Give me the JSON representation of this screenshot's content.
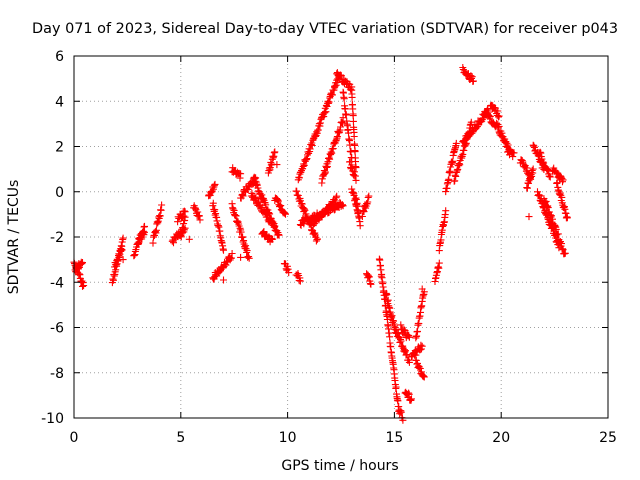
{
  "chart_data": {
    "type": "scatter",
    "title": "Day 071 of 2023, Sidereal Day-to-day VTEC variation (SDTVAR) for receiver p043",
    "xlabel": "GPS time / hours",
    "ylabel": "SDTVAR / TECUs",
    "xlim": [
      0,
      25
    ],
    "ylim": [
      -10,
      6
    ],
    "x_ticks": [
      0,
      5,
      10,
      15,
      20,
      25
    ],
    "y_ticks": [
      -10,
      -8,
      -6,
      -4,
      -2,
      0,
      2,
      4,
      6
    ],
    "x_tick_labels": [
      "0",
      "5",
      "10",
      "15",
      "20",
      "25"
    ],
    "y_tick_labels": [
      "-10",
      "-8",
      "-6",
      "-4",
      "-2",
      "0",
      "2",
      "4",
      "6"
    ],
    "grid": true,
    "marker": "plus",
    "color": "#ff0000",
    "segments": [
      {
        "x0": 0.0,
        "x1": 0.45,
        "y0": -3.0,
        "y1": -4.2
      },
      {
        "x0": 0.05,
        "x1": 0.4,
        "y0": -3.5,
        "y1": -3.1
      },
      {
        "x0": 1.8,
        "x1": 2.3,
        "y0": -4.0,
        "y1": -2.1
      },
      {
        "x0": 1.9,
        "x1": 2.25,
        "y0": -3.3,
        "y1": -2.5
      },
      {
        "x0": 2.8,
        "x1": 3.3,
        "y0": -2.8,
        "y1": -1.5
      },
      {
        "x0": 3.0,
        "x1": 3.3,
        "y0": -2.2,
        "y1": -1.8
      },
      {
        "x0": 3.7,
        "x1": 4.1,
        "y0": -2.2,
        "y1": -0.7
      },
      {
        "x0": 4.6,
        "x1": 5.2,
        "y0": -2.2,
        "y1": -1.6
      },
      {
        "x0": 4.85,
        "x1": 5.2,
        "y0": -1.2,
        "y1": -0.9
      },
      {
        "x0": 5.0,
        "x1": 5.2,
        "y0": -2.0,
        "y1": -1.2
      },
      {
        "x0": 5.6,
        "x1": 5.9,
        "y0": -0.6,
        "y1": -1.2
      },
      {
        "x0": 6.3,
        "x1": 6.6,
        "y0": -0.3,
        "y1": 0.4
      },
      {
        "x0": 6.5,
        "x1": 7.0,
        "y0": -0.5,
        "y1": -2.5
      },
      {
        "x0": 6.5,
        "x1": 7.4,
        "y0": -3.8,
        "y1": -2.8
      },
      {
        "x0": 7.4,
        "x1": 8.2,
        "y0": -0.6,
        "y1": -3.0
      },
      {
        "x0": 7.4,
        "x1": 7.8,
        "y0": 1.0,
        "y1": 0.7
      },
      {
        "x0": 7.8,
        "x1": 8.5,
        "y0": -0.2,
        "y1": 0.6
      },
      {
        "x0": 8.3,
        "x1": 9.4,
        "y0": -0.1,
        "y1": -1.6
      },
      {
        "x0": 8.4,
        "x1": 9.6,
        "y0": 0.6,
        "y1": -2.0
      },
      {
        "x0": 8.8,
        "x1": 9.3,
        "y0": -1.8,
        "y1": -2.2
      },
      {
        "x0": 9.1,
        "x1": 9.4,
        "y0": 0.8,
        "y1": 1.8
      },
      {
        "x0": 9.4,
        "x1": 9.9,
        "y0": -0.3,
        "y1": -1.0
      },
      {
        "x0": 9.85,
        "x1": 10.05,
        "y0": -3.2,
        "y1": -3.5
      },
      {
        "x0": 10.4,
        "x1": 10.6,
        "y0": -3.6,
        "y1": -3.9
      },
      {
        "x0": 10.4,
        "x1": 11.4,
        "y0": 0.0,
        "y1": -2.2
      },
      {
        "x0": 10.5,
        "x1": 12.4,
        "y0": 0.6,
        "y1": 5.1
      },
      {
        "x0": 10.6,
        "x1": 12.6,
        "y0": -1.4,
        "y1": -0.5
      },
      {
        "x0": 11.2,
        "x1": 12.3,
        "y0": -1.4,
        "y1": -0.3
      },
      {
        "x0": 11.6,
        "x1": 12.6,
        "y0": 0.5,
        "y1": 3.2
      },
      {
        "x0": 12.3,
        "x1": 13.0,
        "y0": 5.2,
        "y1": 4.6
      },
      {
        "x0": 12.6,
        "x1": 13.0,
        "y0": 4.4,
        "y1": 1.4
      },
      {
        "x0": 13.0,
        "x1": 13.3,
        "y0": 0.1,
        "y1": -0.9
      },
      {
        "x0": 13.5,
        "x1": 13.8,
        "y0": -1.0,
        "y1": -0.3
      },
      {
        "x0": 13.0,
        "x1": 13.2,
        "y0": 4.5,
        "y1": 1.0
      },
      {
        "x0": 12.9,
        "x1": 13.2,
        "y0": 1.3,
        "y1": 0.6
      },
      {
        "x0": 13.2,
        "x1": 13.4,
        "y0": -0.3,
        "y1": -1.5
      },
      {
        "x0": 13.7,
        "x1": 13.9,
        "y0": -3.6,
        "y1": -4.0
      },
      {
        "x0": 14.3,
        "x1": 15.2,
        "y0": -3.0,
        "y1": -9.6
      },
      {
        "x0": 15.2,
        "x1": 15.4,
        "y0": -9.6,
        "y1": -10.0
      },
      {
        "x0": 14.6,
        "x1": 15.0,
        "y0": -4.5,
        "y1": -6.0
      },
      {
        "x0": 15.0,
        "x1": 15.7,
        "y0": -6.0,
        "y1": -7.5
      },
      {
        "x0": 15.3,
        "x1": 15.7,
        "y0": -6.0,
        "y1": -6.5
      },
      {
        "x0": 15.8,
        "x1": 16.3,
        "y0": -7.3,
        "y1": -6.8
      },
      {
        "x0": 16.0,
        "x1": 16.4,
        "y0": -6.5,
        "y1": -4.4
      },
      {
        "x0": 15.5,
        "x1": 15.8,
        "y0": -8.8,
        "y1": -9.2
      },
      {
        "x0": 16.0,
        "x1": 16.4,
        "y0": -7.5,
        "y1": -8.2
      },
      {
        "x0": 16.9,
        "x1": 17.1,
        "y0": -4.0,
        "y1": -3.2
      },
      {
        "x0": 17.1,
        "x1": 17.4,
        "y0": -2.5,
        "y1": -0.9
      },
      {
        "x0": 17.4,
        "x1": 17.9,
        "y0": 0.0,
        "y1": 2.2
      },
      {
        "x0": 17.8,
        "x1": 18.6,
        "y0": 0.5,
        "y1": 3.0
      },
      {
        "x0": 18.2,
        "x1": 18.7,
        "y0": 5.4,
        "y1": 4.9
      },
      {
        "x0": 18.2,
        "x1": 19.4,
        "y0": 2.2,
        "y1": 3.6
      },
      {
        "x0": 19.2,
        "x1": 19.9,
        "y0": 3.5,
        "y1": 2.8
      },
      {
        "x0": 19.5,
        "x1": 19.9,
        "y0": 3.8,
        "y1": 3.4
      },
      {
        "x0": 19.9,
        "x1": 20.4,
        "y0": 2.7,
        "y1": 1.8
      },
      {
        "x0": 20.3,
        "x1": 20.6,
        "y0": 1.8,
        "y1": 1.6
      },
      {
        "x0": 20.9,
        "x1": 21.4,
        "y0": 1.4,
        "y1": 0.7
      },
      {
        "x0": 21.2,
        "x1": 21.5,
        "y0": 0.2,
        "y1": 1.0
      },
      {
        "x0": 21.5,
        "x1": 22.0,
        "y0": 2.1,
        "y1": 1.0
      },
      {
        "x0": 21.8,
        "x1": 22.3,
        "y0": 1.7,
        "y1": 0.6
      },
      {
        "x0": 21.7,
        "x1": 22.7,
        "y0": 0.0,
        "y1": -2.4
      },
      {
        "x0": 22.0,
        "x1": 23.0,
        "y0": -0.3,
        "y1": -2.8
      },
      {
        "x0": 22.4,
        "x1": 22.9,
        "y0": 1.0,
        "y1": 0.5
      },
      {
        "x0": 22.6,
        "x1": 23.1,
        "y0": 0.4,
        "y1": -1.2
      }
    ],
    "isolated_points": [
      {
        "x": 2.3,
        "y": -3.0
      },
      {
        "x": 5.4,
        "y": -2.1
      },
      {
        "x": 7.0,
        "y": -3.9
      },
      {
        "x": 7.8,
        "y": -2.9
      },
      {
        "x": 9.5,
        "y": 1.2
      },
      {
        "x": 12.2,
        "y": 4.6
      },
      {
        "x": 16.3,
        "y": -4.3
      },
      {
        "x": 21.3,
        "y": -1.1
      },
      {
        "x": 19.6,
        "y": 3.8
      }
    ]
  }
}
